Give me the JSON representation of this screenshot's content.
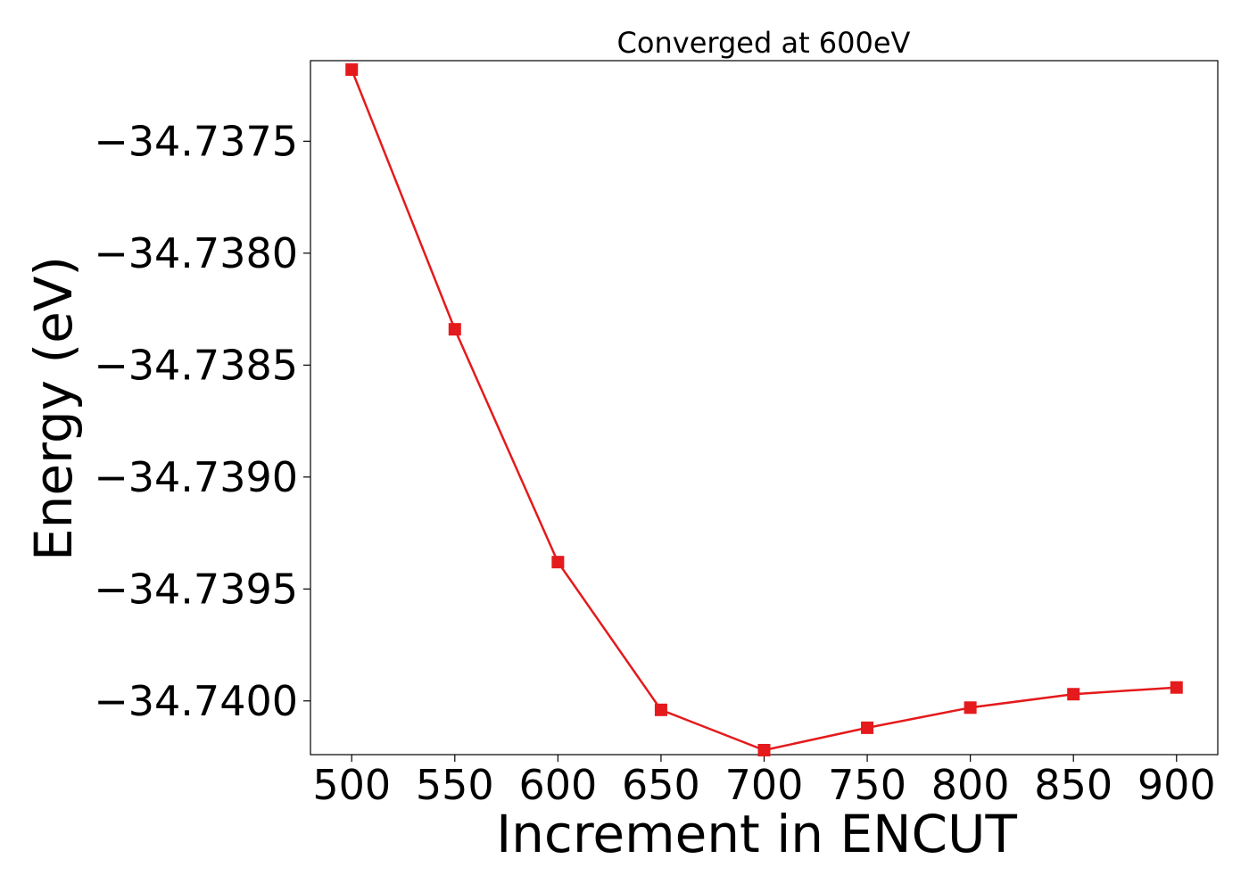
{
  "chart_data": {
    "type": "line",
    "title": "Converged at 600eV",
    "xlabel": "Increment in ENCUT",
    "ylabel": "Energy (eV)",
    "x": [
      500,
      550,
      600,
      650,
      700,
      750,
      800,
      850,
      900
    ],
    "series": [
      {
        "values": [
          -34.73718,
          -34.73834,
          -34.73938,
          -34.74004,
          -34.74022,
          -34.74012,
          -34.74003,
          -34.73997,
          -34.73994
        ],
        "color": "#e41a1c",
        "marker": "square"
      }
    ],
    "xticks": [
      500,
      550,
      600,
      650,
      700,
      750,
      800,
      850,
      900
    ],
    "xtick_labels": [
      "500",
      "550",
      "600",
      "650",
      "700",
      "750",
      "800",
      "850",
      "900"
    ],
    "yticks": [
      -34.7375,
      -34.738,
      -34.7385,
      -34.739,
      -34.7395,
      -34.74
    ],
    "ytick_labels": [
      "−34.7375",
      "−34.7380",
      "−34.7385",
      "−34.7390",
      "−34.7395",
      "−34.7400"
    ],
    "xlim": [
      480,
      920
    ],
    "ylim": [
      -34.74024,
      -34.73714
    ],
    "grid": false,
    "legend": false
  }
}
